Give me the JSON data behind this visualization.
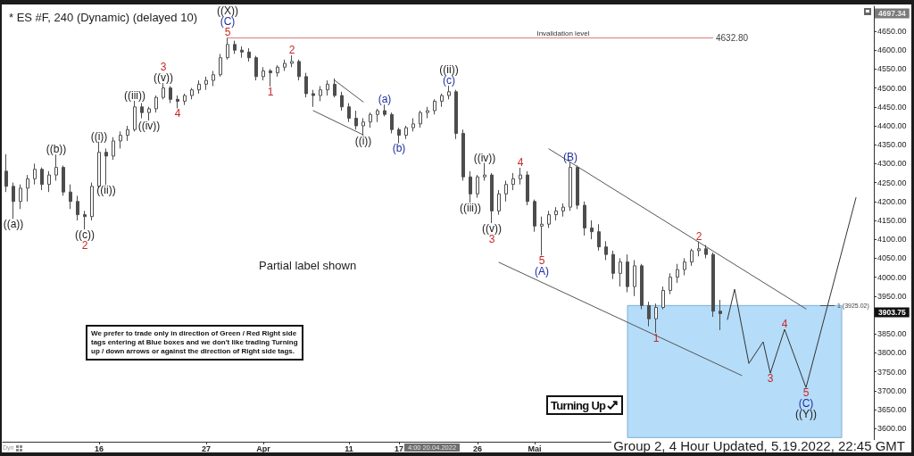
{
  "chart_data": {
    "type": "candlestick",
    "title": "* ES #F, 240 (Dynamic) (delayed 10)",
    "color": "#4d4d4d",
    "marker": "none",
    "categories": [
      null,
      null,
      null,
      null,
      null,
      null,
      null,
      null,
      null,
      null,
      null,
      null,
      null,
      "16",
      null,
      null,
      null,
      null,
      null,
      null,
      null,
      null,
      null,
      null,
      null,
      null,
      null,
      null,
      "27",
      null,
      null,
      null,
      null,
      null,
      null,
      null,
      "Apr",
      null,
      null,
      null,
      null,
      null,
      null,
      null,
      null,
      null,
      null,
      null,
      "11",
      null,
      null,
      null,
      null,
      null,
      null,
      "17",
      null,
      null,
      null,
      null,
      null,
      null,
      null,
      null,
      null,
      null,
      "26",
      null,
      null,
      null,
      null,
      null,
      null,
      null,
      "Mai",
      null,
      null,
      null,
      null,
      null,
      null,
      null,
      null,
      null,
      null,
      null,
      null,
      null,
      null,
      null,
      null,
      null,
      null,
      null,
      null,
      null,
      null,
      null,
      null,
      null,
      null,
      null,
      null,
      null,
      null,
      null,
      null,
      null,
      null,
      null,
      null,
      null,
      null,
      null,
      null,
      null,
      null,
      null,
      null,
      null,
      null,
      null
    ],
    "ohlc": [
      [
        4280,
        4325,
        4225,
        4240
      ],
      [
        4240,
        4250,
        4154,
        4200
      ],
      [
        4200,
        4245,
        4180,
        4235
      ],
      [
        4235,
        4270,
        4200,
        4260
      ],
      [
        4260,
        4300,
        4245,
        4285
      ],
      [
        4285,
        4290,
        4230,
        4245
      ],
      [
        4245,
        4280,
        4225,
        4270
      ],
      [
        4270,
        4324,
        4255,
        4290
      ],
      [
        4290,
        4295,
        4215,
        4225
      ],
      [
        4225,
        4245,
        4180,
        4200
      ],
      [
        4200,
        4215,
        4150,
        4165
      ],
      [
        4165,
        4175,
        4126,
        4160
      ],
      [
        4160,
        4250,
        4150,
        4240
      ],
      [
        4240,
        4358,
        4235,
        4330
      ],
      [
        4330,
        4340,
        4244,
        4320
      ],
      [
        4320,
        4370,
        4310,
        4360
      ],
      [
        4360,
        4385,
        4340,
        4375
      ],
      [
        4375,
        4400,
        4360,
        4390
      ],
      [
        4390,
        4466,
        4385,
        4450
      ],
      [
        4450,
        4460,
        4420,
        4435
      ],
      [
        4435,
        4450,
        4414,
        4445
      ],
      [
        4445,
        4480,
        4435,
        4475
      ],
      [
        4475,
        4513,
        4470,
        4500
      ],
      [
        4500,
        4505,
        4460,
        4470
      ],
      [
        4470,
        4480,
        4446,
        4465
      ],
      [
        4465,
        4485,
        4455,
        4480
      ],
      [
        4480,
        4500,
        4470,
        4495
      ],
      [
        4495,
        4520,
        4485,
        4510
      ],
      [
        4510,
        4530,
        4495,
        4520
      ],
      [
        4520,
        4545,
        4505,
        4535
      ],
      [
        4535,
        4590,
        4530,
        4580
      ],
      [
        4580,
        4632.8,
        4575,
        4615
      ],
      [
        4615,
        4625,
        4590,
        4600
      ],
      [
        4600,
        4610,
        4580,
        4595
      ],
      [
        4595,
        4605,
        4570,
        4580
      ],
      [
        4580,
        4585,
        4520,
        4530
      ],
      [
        4530,
        4555,
        4520,
        4545
      ],
      [
        4545,
        4550,
        4504,
        4540
      ],
      [
        4540,
        4560,
        4530,
        4555
      ],
      [
        4555,
        4575,
        4545,
        4565
      ],
      [
        4565,
        4586,
        4555,
        4570
      ],
      [
        4570,
        4575,
        4520,
        4530
      ],
      [
        4530,
        4540,
        4475,
        4485
      ],
      [
        4485,
        4495,
        4450,
        4480
      ],
      [
        4480,
        4505,
        4465,
        4495
      ],
      [
        4495,
        4520,
        4480,
        4510
      ],
      [
        4510,
        4525,
        4475,
        4480
      ],
      [
        4480,
        4490,
        4440,
        4450
      ],
      [
        4450,
        4460,
        4410,
        4420
      ],
      [
        4420,
        4440,
        4390,
        4400
      ],
      [
        4400,
        4420,
        4374,
        4410
      ],
      [
        4410,
        4435,
        4395,
        4430
      ],
      [
        4430,
        4445,
        4410,
        4440
      ],
      [
        4440,
        4456,
        4425,
        4430
      ],
      [
        4430,
        4435,
        4380,
        4390
      ],
      [
        4390,
        4395,
        4354,
        4375
      ],
      [
        4375,
        4400,
        4365,
        4395
      ],
      [
        4395,
        4420,
        4385,
        4405
      ],
      [
        4405,
        4440,
        4395,
        4435
      ],
      [
        4435,
        4450,
        4420,
        4440
      ],
      [
        4440,
        4470,
        4430,
        4465
      ],
      [
        4465,
        4485,
        4450,
        4480
      ],
      [
        4480,
        4506,
        4470,
        4490
      ],
      [
        4490,
        4495,
        4365,
        4380
      ],
      [
        4380,
        4390,
        4255,
        4265
      ],
      [
        4265,
        4280,
        4197,
        4220
      ],
      [
        4220,
        4270,
        4210,
        4265
      ],
      [
        4265,
        4302,
        4255,
        4270
      ],
      [
        4270,
        4275,
        4143,
        4175
      ],
      [
        4175,
        4230,
        4165,
        4220
      ],
      [
        4220,
        4255,
        4200,
        4245
      ],
      [
        4245,
        4275,
        4230,
        4260
      ],
      [
        4260,
        4289,
        4245,
        4270
      ],
      [
        4270,
        4280,
        4190,
        4200
      ],
      [
        4200,
        4205,
        4120,
        4135
      ],
      [
        4135,
        4160,
        4057,
        4140
      ],
      [
        4140,
        4175,
        4130,
        4165
      ],
      [
        4165,
        4185,
        4150,
        4175
      ],
      [
        4175,
        4195,
        4160,
        4185
      ],
      [
        4185,
        4303,
        4175,
        4290
      ],
      [
        4290,
        4295,
        4180,
        4190
      ],
      [
        4190,
        4200,
        4110,
        4130
      ],
      [
        4130,
        4150,
        4100,
        4120
      ],
      [
        4120,
        4140,
        4070,
        4080
      ],
      [
        4080,
        4095,
        4045,
        4060
      ],
      [
        4060,
        4070,
        3995,
        4010
      ],
      [
        4010,
        4050,
        3975,
        4040
      ],
      [
        4040,
        4060,
        3960,
        3975
      ],
      [
        3975,
        4045,
        3950,
        4030
      ],
      [
        4030,
        4035,
        3915,
        3925
      ],
      [
        3925,
        3935,
        3870,
        3890
      ],
      [
        3890,
        3930,
        3853,
        3920
      ],
      [
        3920,
        3975,
        3915,
        3965
      ],
      [
        3965,
        4010,
        3955,
        4000
      ],
      [
        4000,
        4035,
        3985,
        4020
      ],
      [
        4020,
        4050,
        4005,
        4040
      ],
      [
        4040,
        4075,
        4030,
        4070
      ],
      [
        4070,
        4094,
        4055,
        4075
      ],
      [
        4075,
        4085,
        4050,
        4060
      ],
      [
        4060,
        4065,
        3895,
        3910
      ],
      [
        3910,
        3940,
        3860,
        3903.75
      ],
      null,
      null,
      null,
      null,
      null,
      null,
      null,
      null,
      null,
      null,
      null,
      null,
      null,
      null,
      null,
      null,
      null,
      null,
      null,
      null,
      null
    ],
    "series": [
      {
        "type": "line",
        "color": "#555555",
        "values": [
          null,
          null,
          null,
          null,
          null,
          null,
          null,
          null,
          null,
          null,
          null,
          null,
          null,
          null,
          null,
          null,
          null,
          null,
          null,
          null,
          null,
          null,
          null,
          null,
          null,
          null,
          null,
          null,
          null,
          null,
          null,
          null,
          null,
          null,
          null,
          null,
          null,
          null,
          null,
          null,
          null,
          null,
          null,
          null,
          null,
          null,
          4520,
          null,
          null,
          null,
          4463,
          null,
          null,
          null,
          null,
          null,
          null,
          null,
          null,
          null,
          null,
          null,
          null,
          null,
          null,
          null,
          null,
          null,
          null,
          null,
          null,
          null,
          null,
          null,
          null,
          null,
          null,
          null,
          null,
          null,
          null,
          null,
          null,
          null,
          null,
          null,
          null,
          null,
          null,
          null,
          null,
          null,
          null,
          null,
          null,
          null,
          null,
          null,
          null,
          null,
          null,
          null,
          null,
          null,
          null,
          null,
          null,
          null,
          null,
          null,
          null,
          null,
          null,
          null,
          null,
          null,
          null,
          null,
          null,
          null,
          null,
          null
        ]
      },
      {
        "type": "line",
        "color": "#555555",
        "values": [
          null,
          null,
          null,
          null,
          null,
          null,
          null,
          null,
          null,
          null,
          null,
          null,
          null,
          null,
          null,
          null,
          null,
          null,
          null,
          null,
          null,
          null,
          null,
          null,
          null,
          null,
          null,
          null,
          null,
          null,
          null,
          null,
          null,
          null,
          null,
          null,
          null,
          null,
          null,
          null,
          null,
          null,
          null,
          4440,
          null,
          null,
          null,
          null,
          null,
          null,
          4376,
          null,
          null,
          null,
          null,
          null,
          null,
          null,
          null,
          null,
          null,
          null,
          null,
          null,
          null,
          null,
          null,
          null,
          null,
          null,
          null,
          null,
          null,
          null,
          null,
          null,
          null,
          null,
          null,
          null,
          null,
          null,
          null,
          null,
          null,
          null,
          null,
          null,
          null,
          null,
          null,
          null,
          null,
          null,
          null,
          null,
          null,
          null,
          null,
          null,
          null,
          null,
          null,
          null,
          null,
          null,
          null,
          null,
          null,
          null,
          null,
          null,
          null,
          null,
          null,
          null,
          null,
          null,
          null,
          null,
          null,
          null
        ]
      },
      {
        "type": "line",
        "color": "#555555",
        "values": [
          null,
          null,
          null,
          null,
          null,
          null,
          null,
          null,
          null,
          null,
          null,
          null,
          null,
          null,
          null,
          null,
          null,
          null,
          null,
          null,
          null,
          null,
          null,
          null,
          null,
          null,
          null,
          null,
          null,
          null,
          null,
          null,
          null,
          null,
          null,
          null,
          null,
          null,
          null,
          null,
          null,
          null,
          null,
          null,
          null,
          null,
          null,
          null,
          null,
          null,
          null,
          null,
          null,
          null,
          null,
          null,
          null,
          null,
          null,
          null,
          null,
          null,
          null,
          null,
          null,
          null,
          null,
          null,
          null,
          null,
          null,
          null,
          null,
          null,
          null,
          null,
          4339,
          null,
          null,
          null,
          null,
          null,
          null,
          null,
          null,
          null,
          null,
          null,
          null,
          null,
          null,
          null,
          null,
          null,
          null,
          null,
          null,
          null,
          null,
          null,
          null,
          null,
          null,
          null,
          null,
          null,
          null,
          null,
          null,
          null,
          null,
          null,
          3916,
          null,
          null,
          null,
          null,
          null,
          null,
          null,
          null,
          null
        ]
      },
      {
        "type": "line",
        "color": "#555555",
        "values": [
          null,
          null,
          null,
          null,
          null,
          null,
          null,
          null,
          null,
          null,
          null,
          null,
          null,
          null,
          null,
          null,
          null,
          null,
          null,
          null,
          null,
          null,
          null,
          null,
          null,
          null,
          null,
          null,
          null,
          null,
          null,
          null,
          null,
          null,
          null,
          null,
          null,
          null,
          null,
          null,
          null,
          null,
          null,
          null,
          null,
          null,
          null,
          null,
          null,
          null,
          null,
          null,
          null,
          null,
          null,
          null,
          null,
          null,
          null,
          null,
          null,
          null,
          null,
          null,
          null,
          null,
          null,
          null,
          null,
          4039,
          null,
          null,
          null,
          null,
          null,
          null,
          null,
          null,
          null,
          null,
          null,
          null,
          null,
          null,
          null,
          null,
          null,
          null,
          null,
          null,
          null,
          null,
          null,
          null,
          null,
          null,
          null,
          null,
          null,
          null,
          null,
          null,
          null,
          3740,
          null,
          null,
          null,
          null,
          null,
          null,
          null,
          null,
          null,
          null,
          null,
          null,
          null,
          null,
          null,
          null,
          null,
          null
        ]
      },
      {
        "type": "line",
        "color": "#333333",
        "values": [
          null,
          null,
          null,
          null,
          null,
          null,
          null,
          null,
          null,
          null,
          null,
          null,
          null,
          null,
          null,
          null,
          null,
          null,
          null,
          null,
          null,
          null,
          null,
          null,
          null,
          null,
          null,
          null,
          null,
          null,
          null,
          null,
          null,
          null,
          null,
          null,
          null,
          null,
          null,
          null,
          null,
          null,
          null,
          null,
          null,
          null,
          null,
          null,
          null,
          null,
          null,
          null,
          null,
          null,
          null,
          null,
          null,
          null,
          null,
          null,
          null,
          null,
          null,
          null,
          null,
          null,
          null,
          null,
          null,
          null,
          null,
          null,
          null,
          null,
          null,
          null,
          null,
          null,
          null,
          null,
          null,
          null,
          null,
          null,
          null,
          null,
          null,
          null,
          null,
          null,
          null,
          null,
          null,
          null,
          null,
          null,
          null,
          null,
          null,
          null,
          null,
          3888,
          3968,
          null,
          3772,
          null,
          3829,
          3746,
          null,
          3862,
          null,
          null,
          3708,
          null,
          null,
          null,
          null,
          null,
          null,
          4210,
          null,
          null
        ]
      }
    ],
    "ylim": [
      3565,
      4716
    ],
    "yticks": [
      {
        "value": 3600,
        "label": "3600.00"
      },
      {
        "value": 3650,
        "label": "3650.00"
      },
      {
        "value": 3700,
        "label": "3700.00"
      },
      {
        "value": 3750,
        "label": "3750.00"
      },
      {
        "value": 3800,
        "label": "3800.00"
      },
      {
        "value": 3850,
        "label": "3850.00"
      },
      {
        "value": 3950,
        "label": "3950.00"
      },
      {
        "value": 4000,
        "label": "4000.00"
      },
      {
        "value": 4050,
        "label": "4050.00"
      },
      {
        "value": 4100,
        "label": "4100.00"
      },
      {
        "value": 4150,
        "label": "4150.00"
      },
      {
        "value": 4200,
        "label": "4200.00"
      },
      {
        "value": 4250,
        "label": "4250.00"
      },
      {
        "value": 4300,
        "label": "4300.00"
      },
      {
        "value": 4350,
        "label": "4350.00"
      },
      {
        "value": 4400,
        "label": "4400.00"
      },
      {
        "value": 4450,
        "label": "4450.00"
      },
      {
        "value": 4500,
        "label": "4500.00"
      },
      {
        "value": 4550,
        "label": "4550.00"
      },
      {
        "value": 4600,
        "label": "4600.00"
      },
      {
        "value": 4650,
        "label": "4650.00"
      }
    ],
    "ref_lines": [
      {
        "axis": "y",
        "value": 4632.8,
        "label": "4632.80",
        "color": "#e07b7b"
      },
      {
        "axis": "y",
        "value": 3925.02,
        "label": "1 (3925.02)",
        "color": "#445566"
      }
    ],
    "bands": [
      {
        "axis": "y",
        "from": 3576,
        "to": 3925.02,
        "color": "#b5dcf8"
      }
    ],
    "annotations": [
      {
        "text": "((a))",
        "y": 4154
      },
      {
        "text": "((b))",
        "y": 4324
      },
      {
        "text": "((c))",
        "y": 4126
      },
      "2",
      {
        "text": "((i))",
        "y": 4358
      },
      {
        "text": "((ii))",
        "y": 4244
      },
      {
        "text": "((iii))",
        "y": 4466
      },
      {
        "text": "((iv))",
        "y": 4414
      },
      {
        "text": "((v))",
        "y": 4513
      },
      "3",
      {
        "text": "4",
        "y": 4446
      },
      {
        "text": "5",
        "y": 4632.8
      },
      "(C)",
      "((X))",
      {
        "text": "1",
        "y": 4504
      },
      {
        "text": "2",
        "y": 4586
      },
      {
        "text": "((i))",
        "y": 4374
      },
      {
        "text": "(a)",
        "y": 4456
      },
      {
        "text": "(b)",
        "y": 4354
      },
      {
        "text": "(c)",
        "y": 4506
      },
      "((ii))",
      {
        "text": "((iii))",
        "y": 4197
      },
      {
        "text": "((iv))",
        "y": 4302
      },
      {
        "text": "((v))",
        "y": 4143
      },
      "3",
      {
        "text": "4",
        "y": 4289
      },
      {
        "text": "5",
        "y": 4057
      },
      "(A)",
      {
        "text": "(B)",
        "y": 4303
      },
      {
        "text": "1",
        "y": 3853
      },
      "2",
      {
        "text": "3",
        "y": 3746
      },
      {
        "text": "4",
        "y": 3862
      },
      {
        "text": "5",
        "y": 3708
      },
      "(C)",
      "((Y))",
      {
        "text": "Invalidation level",
        "y": 4632.8
      },
      "4697.34",
      "3903.75",
      "Partial label shown",
      "We prefer to trade only in direction of Green / Red Right side tags entering at Blue boxes and we don't like trading Turning up / down arrows or against the direction of Right side tags.",
      "Turning Up",
      "4:00 20.04.2022",
      "Dyn",
      "Group 2, 4 Hour Updated, 5.19.2022, 22:45 GMT"
    ]
  }
}
